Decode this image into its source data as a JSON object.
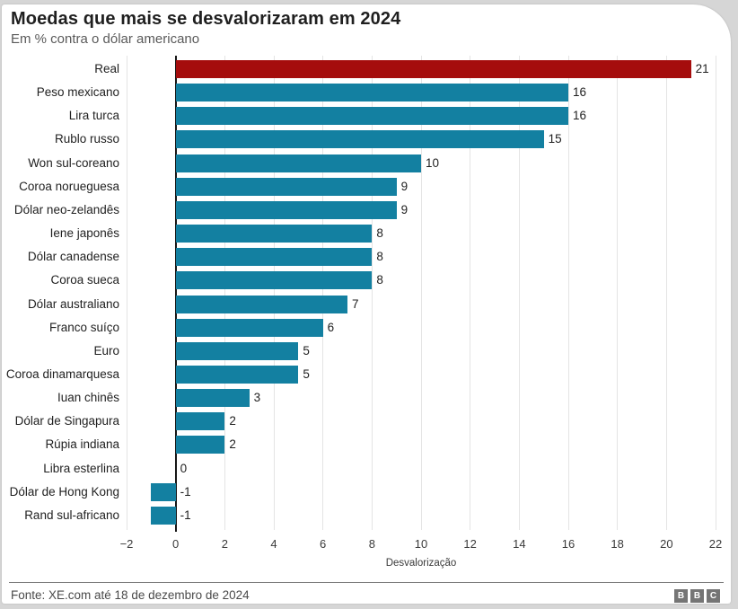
{
  "page": {
    "title": "Moedas que mais se desvalorizaram em 2024",
    "subtitle": "Em % contra o dólar americano",
    "source": "Fonte: XE.com até 18 de dezembro de 2024",
    "logo_letters": [
      "B",
      "B",
      "C"
    ]
  },
  "chart_data": {
    "type": "bar",
    "orientation": "horizontal",
    "title": "Moedas que mais se desvalorizaram em 2024",
    "subtitle": "Em % contra o dólar americano",
    "xlabel": "Desvalorização",
    "ylabel": "",
    "xlim": [
      -2,
      22
    ],
    "xticks": [
      -2,
      0,
      2,
      4,
      6,
      8,
      10,
      12,
      14,
      16,
      18,
      20,
      22
    ],
    "grid": true,
    "categories": [
      "Real",
      "Peso mexicano",
      "Lira turca",
      "Rublo russo",
      "Won sul-coreano",
      "Coroa norueguesa",
      "Dólar neo-zelandês",
      "Iene japonês",
      "Dólar canadense",
      "Coroa sueca",
      "Dólar australiano",
      "Franco suíço",
      "Euro",
      "Coroa dinamarquesa",
      "Iuan chinês",
      "Dólar de Singapura",
      "Rúpia indiana",
      "Libra esterlina",
      "Dólar de Hong Kong",
      "Rand sul-africano"
    ],
    "values": [
      21,
      16,
      16,
      15,
      10,
      9,
      9,
      8,
      8,
      8,
      7,
      6,
      5,
      5,
      3,
      2,
      2,
      0,
      -1,
      -1
    ],
    "colors": {
      "default": "#1380a1",
      "highlight": "#a50d0d",
      "axis": "#161616",
      "gridline": "#e4e4e4"
    },
    "highlight_index": 0
  }
}
